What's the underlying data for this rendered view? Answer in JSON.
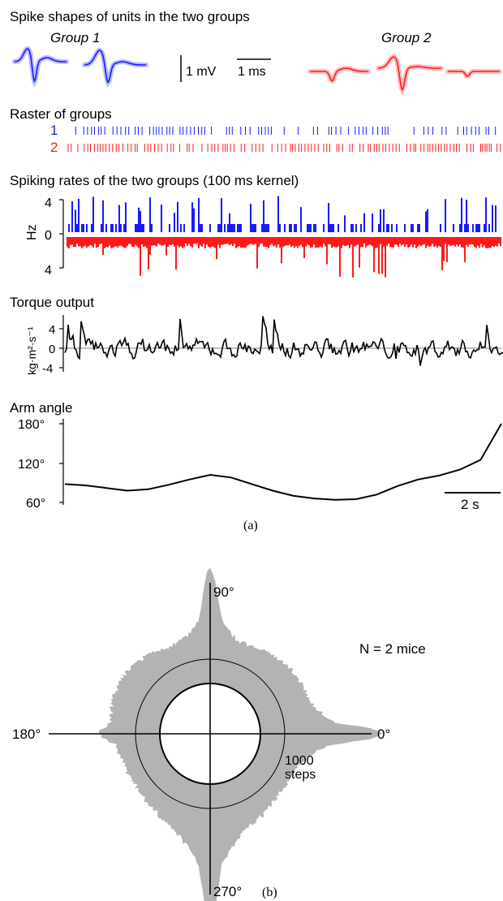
{
  "panel_a": {
    "caption": "(a)",
    "spike_title": "Spike shapes of units in the two groups",
    "group1_label": "Group 1",
    "group2_label": "Group 2",
    "scale_mv": "1 mV",
    "scale_ms": "1 ms",
    "raster_title": "Raster of groups",
    "raster_label_1": "1",
    "raster_label_2": "2",
    "rates_title": "Spiking rates of the two groups (100 ms kernel)",
    "rates_ylabel": "Hz",
    "rates_tick_top": "4",
    "rates_tick_mid": "0",
    "rates_tick_bot": "4",
    "torque_title": "Torque output",
    "torque_ylabel": "kg·m²·s⁻¹",
    "torque_ticks": [
      "4",
      "0",
      "-4"
    ],
    "arm_title": "Arm angle",
    "arm_ticks": [
      "180°",
      "120°",
      "60°"
    ],
    "time_scale": "2 s",
    "colors": {
      "group1": "#1a1aff",
      "group2": "#ff1a1a",
      "shade1": "#9aa0ff",
      "shade2": "#ffa0a0"
    }
  },
  "panel_b": {
    "caption": "(b)",
    "angle_90": "90°",
    "angle_180": "180°",
    "angle_0": "0°",
    "angle_270": "270°",
    "n_label": "N = 2 mice",
    "ring_label_1": "1000",
    "ring_label_2": "steps",
    "fill_color": "#b3b3b3"
  },
  "chart_data": [
    {
      "type": "line",
      "title": "Arm angle",
      "xlabel": "",
      "ylabel": "",
      "x": [
        0,
        1,
        2,
        3,
        4,
        5,
        6,
        7,
        8,
        9,
        10,
        11,
        12,
        13,
        14,
        15,
        16,
        17,
        18,
        19,
        20,
        21
      ],
      "values": [
        88,
        86,
        82,
        78,
        80,
        87,
        95,
        102,
        98,
        88,
        78,
        70,
        66,
        64,
        65,
        72,
        85,
        95,
        101,
        110,
        125,
        180
      ],
      "ylim": [
        60,
        180
      ],
      "yticks": [
        "60°",
        "120°",
        "180°"
      ]
    },
    {
      "type": "line",
      "title": "Torque output",
      "ylabel": "kg·m²·s⁻¹",
      "yticks": [
        "-4",
        "0",
        "4"
      ],
      "ylim": [
        -5,
        7
      ]
    },
    {
      "type": "bar",
      "title": "Spiking rates of the two groups (100 ms kernel)",
      "ylabel": "Hz",
      "yticks": [
        "4",
        "0",
        "4"
      ],
      "series": [
        {
          "name": "1"
        },
        {
          "name": "2"
        }
      ]
    }
  ]
}
